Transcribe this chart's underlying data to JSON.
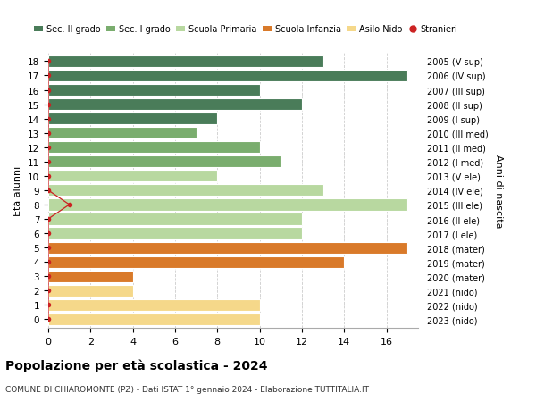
{
  "ages": [
    18,
    17,
    16,
    15,
    14,
    13,
    12,
    11,
    10,
    9,
    8,
    7,
    6,
    5,
    4,
    3,
    2,
    1,
    0
  ],
  "labels_right": [
    "2005 (V sup)",
    "2006 (IV sup)",
    "2007 (III sup)",
    "2008 (II sup)",
    "2009 (I sup)",
    "2010 (III med)",
    "2011 (II med)",
    "2012 (I med)",
    "2013 (V ele)",
    "2014 (IV ele)",
    "2015 (III ele)",
    "2016 (II ele)",
    "2017 (I ele)",
    "2018 (mater)",
    "2019 (mater)",
    "2020 (mater)",
    "2021 (nido)",
    "2022 (nido)",
    "2023 (nido)"
  ],
  "bar_values": [
    13,
    17,
    10,
    12,
    8,
    7,
    10,
    11,
    8,
    13,
    17,
    12,
    12,
    17,
    14,
    4,
    4,
    10,
    10
  ],
  "bar_colors": [
    "#4a7c59",
    "#4a7c59",
    "#4a7c59",
    "#4a7c59",
    "#4a7c59",
    "#7aad6e",
    "#7aad6e",
    "#7aad6e",
    "#b8d8a0",
    "#b8d8a0",
    "#b8d8a0",
    "#b8d8a0",
    "#b8d8a0",
    "#d97a2a",
    "#d97a2a",
    "#d97a2a",
    "#f5d88a",
    "#f5d88a",
    "#f5d88a"
  ],
  "stranieri_x": [
    0,
    0,
    0,
    0,
    0,
    0,
    0,
    0,
    0,
    0,
    1,
    0,
    0,
    0,
    0,
    0,
    0,
    0,
    0
  ],
  "legend_labels": [
    "Sec. II grado",
    "Sec. I grado",
    "Scuola Primaria",
    "Scuola Infanzia",
    "Asilo Nido",
    "Stranieri"
  ],
  "legend_colors": [
    "#4a7c59",
    "#7aad6e",
    "#b8d8a0",
    "#d97a2a",
    "#f5d88a",
    "#cc2222"
  ],
  "title": "Popolazione per età scolastica - 2024",
  "subtitle": "COMUNE DI CHIAROMONTE (PZ) - Dati ISTAT 1° gennaio 2024 - Elaborazione TUTTITALIA.IT",
  "ylabel": "Età alunni",
  "ylabel_right": "Anni di nascita",
  "xlabel_ticks": [
    0,
    2,
    4,
    6,
    8,
    10,
    12,
    14,
    16
  ],
  "xlim": [
    0,
    17.5
  ],
  "ylim": [
    -0.6,
    18.6
  ],
  "background_color": "#ffffff",
  "grid_color": "#cccccc",
  "bar_height": 0.82
}
